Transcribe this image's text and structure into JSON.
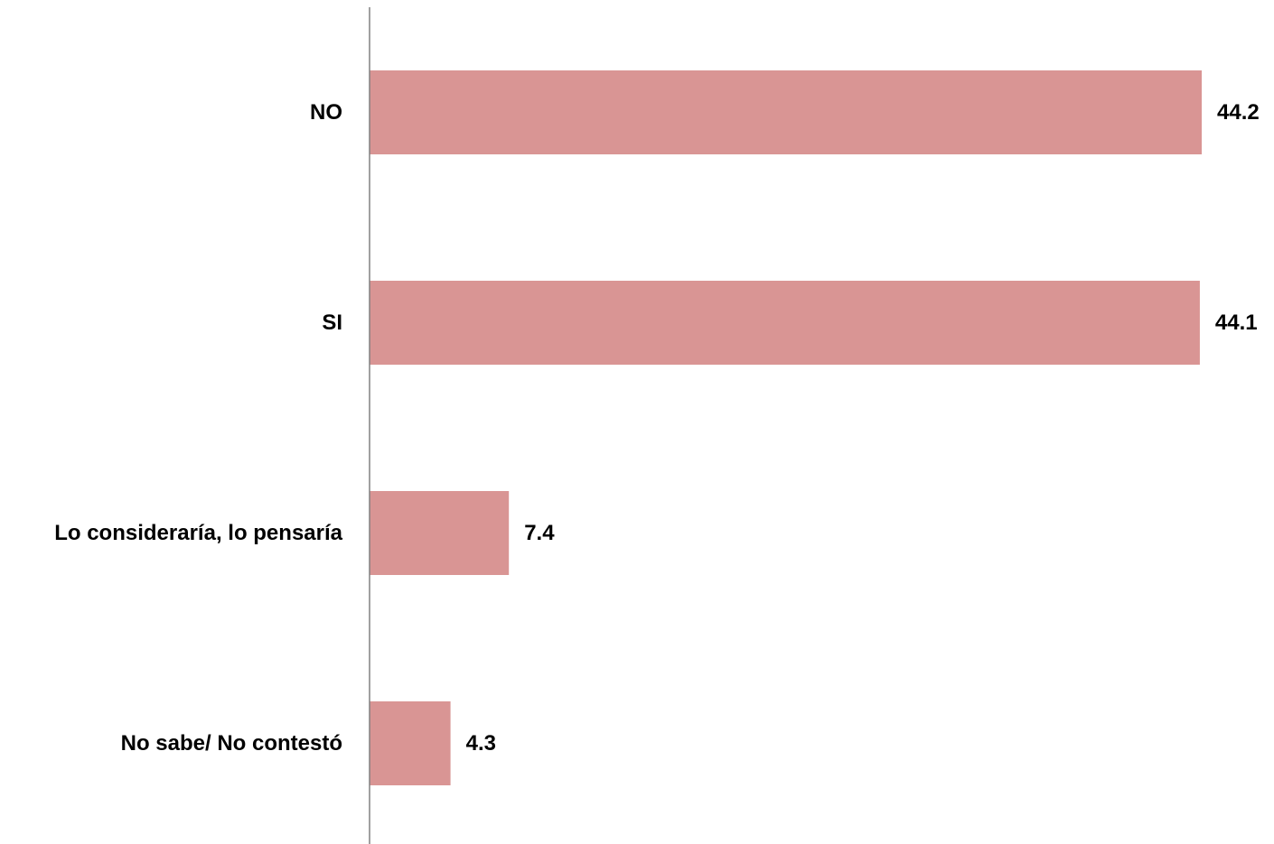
{
  "chart_data": {
    "type": "bar",
    "orientation": "horizontal",
    "categories": [
      "NO",
      "SI",
      "Lo consideraría, lo pensaría",
      "No sabe/ No contestó"
    ],
    "values": [
      44.2,
      44.1,
      7.4,
      4.3
    ],
    "value_labels": [
      "44.2",
      "44.1",
      "7.4",
      "4.3"
    ],
    "xlim": [
      0,
      44.2
    ],
    "grid": false,
    "legend": "none",
    "bar_color": "#d99594",
    "axis_color": "#808080"
  }
}
